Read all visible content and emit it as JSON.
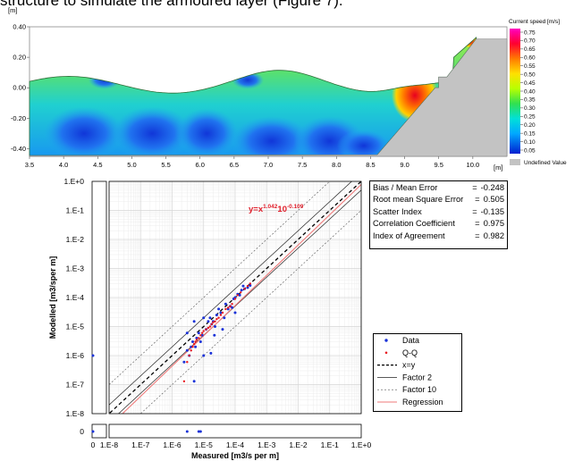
{
  "caption": "structure to simulate the armoured layer (Figure 7).",
  "colors": {
    "data": "#1a32d8",
    "qq": "#e8161c",
    "regression": "#ef7a7a",
    "land": "#c3c3c3",
    "grid": "#d6d6d6"
  },
  "chart_data": [
    {
      "type": "heatmap",
      "y_unit": "[m]",
      "x_unit": "[m]",
      "xlim": [
        3.5,
        10.5
      ],
      "ylim": [
        -0.45,
        0.4
      ],
      "x_ticks": [
        "3.5",
        "4.0",
        "4.5",
        "5.0",
        "5.5",
        "6.0",
        "6.5",
        "7.0",
        "7.5",
        "8.0",
        "8.5",
        "9.0",
        "9.5",
        "10.0"
      ],
      "y_ticks": [
        "0.40",
        "0.20",
        "0.00",
        "-0.20",
        "-0.40"
      ],
      "colorbar": {
        "title": "Current speed [m/s]",
        "levels": [
          "0.75",
          "0.70",
          "0.65",
          "0.60",
          "0.55",
          "0.50",
          "0.45",
          "0.40",
          "0.35",
          "0.30",
          "0.25",
          "0.20",
          "0.15",
          "0.10",
          "0.05"
        ],
        "undefined_label": "Undefined Value"
      }
    },
    {
      "type": "scatter",
      "xlabel": "Measured [m3/s per m]",
      "ylabel": "Modelled [m3/sper m]",
      "scale": "log",
      "xlim": [
        1e-08,
        1
      ],
      "ylim": [
        1e-08,
        1
      ],
      "x_ticks": [
        "0",
        "1.E-8",
        "1.E-7",
        "1.E-6",
        "1.E-5",
        "1.E-4",
        "1.E-3",
        "1.E-2",
        "1.E-1",
        "1.E+0"
      ],
      "y_ticks": [
        "1.E+0",
        "1.E-1",
        "1.E-2",
        "1.E-3",
        "1.E-4",
        "1.E-5",
        "1.E-6",
        "1.E-7",
        "1.E-8",
        "0"
      ],
      "regression_label": {
        "base": "y=x",
        "exp1": "1.042",
        "mid": "10",
        "exp2": "-0.109"
      },
      "stats": [
        {
          "label": "Bias / Mean Error",
          "value": "-0.248"
        },
        {
          "label": "Root mean Square Error",
          "value": "0.505"
        },
        {
          "label": "Scatter Index",
          "value": "-0.135"
        },
        {
          "label": "Correlation Coefficient",
          "value": "0.975"
        },
        {
          "label": "Index of Agreement",
          "value": "0.982"
        }
      ],
      "legend": [
        {
          "label": "Data",
          "style": "dot-blue"
        },
        {
          "label": "Q-Q",
          "style": "dot-red"
        },
        {
          "label": "x=y",
          "style": "dash-black"
        },
        {
          "label": "Factor 2",
          "style": "line-thin"
        },
        {
          "label": "Factor 10",
          "style": "dash-thin"
        },
        {
          "label": "Regression",
          "style": "line-red"
        }
      ],
      "series": [
        {
          "name": "Data",
          "x": [
            2.4e-06,
            3e-06,
            3.5e-06,
            4e-06,
            4.5e-06,
            5e-06,
            5.5e-06,
            6e-06,
            7e-06,
            8e-06,
            9e-06,
            1e-05,
            1.2e-05,
            1.4e-05,
            1.6e-05,
            1.8e-05,
            2e-05,
            2.3e-05,
            2.6e-05,
            3e-05,
            3.5e-05,
            4e-05,
            4.5e-05,
            5e-05,
            6e-05,
            7e-05,
            8e-05,
            9e-05,
            0.0001,
            0.00012,
            0.00014,
            0.00016,
            0.00018,
            0.0002,
            0.00025,
            0.0003,
            1e-05,
            3e-06,
            1.7e-05,
            2.2e-05,
            5e-06,
            0.0001
          ],
          "y": [
            6e-07,
            1.5e-06,
            1e-06,
            2e-06,
            3e-06,
            1.5e-05,
            2e-06,
            4e-06,
            6e-06,
            3e-06,
            5e-06,
            2e-05,
            8e-06,
            1.5e-05,
            2e-05,
            1.2e-05,
            1.5e-05,
            1e-05,
            2.5e-05,
            4e-05,
            3e-05,
            8e-06,
            2e-05,
            6e-05,
            4e-05,
            5e-05,
            4.5e-05,
            9e-05,
            0.0001,
            0.00013,
            0.00012,
            0.00018,
            0.00025,
            0.0002,
            0.00022,
            0.00026,
            1e-06,
            6e-06,
            1.2e-06,
            5e-06,
            1.3e-07,
            3e-05
          ]
        },
        {
          "name": "Q-Q",
          "x": [
            2.4e-06,
            3e-06,
            3.5e-06,
            4e-06,
            4.5e-06,
            5e-06,
            5.5e-06,
            6e-06,
            7e-06,
            8e-06,
            9e-06,
            1e-05,
            1.2e-05,
            1.4e-05,
            1.6e-05,
            1.8e-05,
            2e-05,
            2.3e-05,
            2.6e-05,
            3e-05,
            3.5e-05,
            4e-05,
            5e-05,
            6e-05,
            7e-05,
            8e-05,
            0.0001,
            0.00012,
            0.00015,
            0.0002,
            0.00025,
            0.0003
          ],
          "y": [
            1.3e-07,
            6e-07,
            1e-06,
            1.5e-06,
            2e-06,
            2.5e-06,
            3e-06,
            3.5e-06,
            4e-06,
            5e-06,
            6e-06,
            7e-06,
            8e-06,
            9e-06,
            1e-05,
            1.2e-05,
            1.4e-05,
            1.5e-05,
            1.8e-05,
            2e-05,
            2.5e-05,
            3e-05,
            4e-05,
            4.5e-05,
            5e-05,
            6e-05,
            9e-05,
            0.00012,
            0.00015,
            0.0002,
            0.00025,
            0.0003
          ]
        }
      ],
      "regression": {
        "slope": 1.042,
        "log10_intercept": -0.109
      },
      "marginal_bottom_x": [
        3e-06,
        7e-06,
        8e-06
      ],
      "marginal_left_y": [
        1e-06
      ]
    }
  ]
}
